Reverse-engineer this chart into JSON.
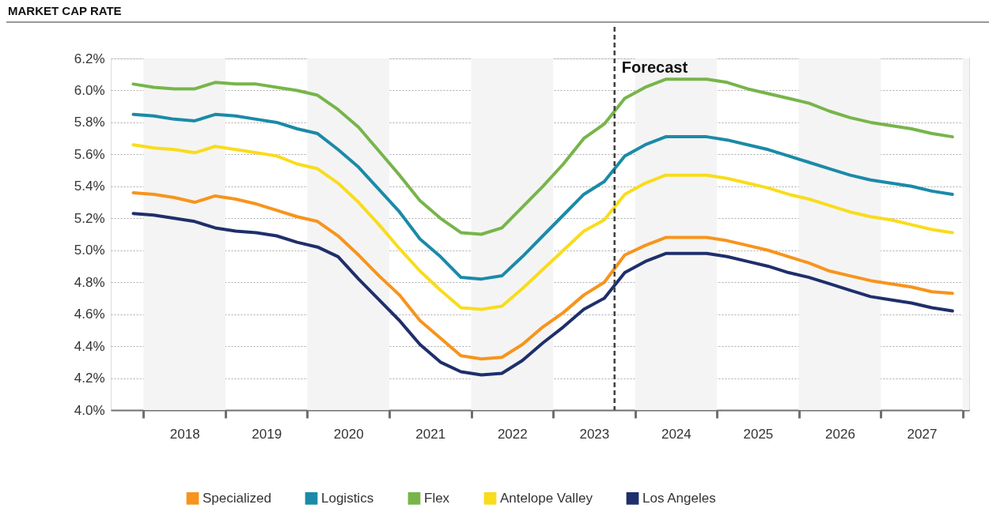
{
  "chart_data": {
    "type": "line",
    "title": "MARKET CAP RATE",
    "x": [
      2017.875,
      2018.125,
      2018.375,
      2018.625,
      2018.875,
      2019.125,
      2019.375,
      2019.625,
      2019.875,
      2020.125,
      2020.375,
      2020.625,
      2020.875,
      2021.125,
      2021.375,
      2021.625,
      2021.875,
      2022.125,
      2022.375,
      2022.625,
      2022.875,
      2023.125,
      2023.375,
      2023.625,
      2023.875,
      2024.125,
      2024.375,
      2024.625,
      2024.875,
      2025.125,
      2025.375,
      2025.625,
      2025.875,
      2026.125,
      2026.375,
      2026.625,
      2026.875,
      2027.125,
      2027.375,
      2027.625,
      2027.875
    ],
    "series": [
      {
        "name": "Specialized",
        "color": "#f7941d",
        "values": [
          5.36,
          5.35,
          5.33,
          5.3,
          5.34,
          5.32,
          5.29,
          5.25,
          5.21,
          5.18,
          5.09,
          4.97,
          4.84,
          4.72,
          4.56,
          4.45,
          4.34,
          4.32,
          4.33,
          4.41,
          4.52,
          4.61,
          4.72,
          4.8,
          4.97,
          5.03,
          5.08,
          5.08,
          5.08,
          5.06,
          5.03,
          5.0,
          4.96,
          4.92,
          4.87,
          4.84,
          4.81,
          4.79,
          4.77,
          4.74,
          4.73
        ]
      },
      {
        "name": "Logistics",
        "color": "#1b8aa8",
        "values": [
          5.85,
          5.84,
          5.82,
          5.81,
          5.85,
          5.84,
          5.82,
          5.8,
          5.76,
          5.73,
          5.63,
          5.52,
          5.38,
          5.24,
          5.07,
          4.96,
          4.83,
          4.82,
          4.84,
          4.96,
          5.09,
          5.22,
          5.35,
          5.43,
          5.59,
          5.66,
          5.71,
          5.71,
          5.71,
          5.69,
          5.66,
          5.63,
          5.59,
          5.55,
          5.51,
          5.47,
          5.44,
          5.42,
          5.4,
          5.37,
          5.35
        ]
      },
      {
        "name": "Flex",
        "color": "#77b54b",
        "values": [
          6.04,
          6.02,
          6.01,
          6.01,
          6.05,
          6.04,
          6.04,
          6.02,
          6.0,
          5.97,
          5.88,
          5.77,
          5.62,
          5.47,
          5.31,
          5.2,
          5.11,
          5.1,
          5.14,
          5.27,
          5.4,
          5.54,
          5.7,
          5.79,
          5.95,
          6.02,
          6.07,
          6.07,
          6.07,
          6.05,
          6.01,
          5.98,
          5.95,
          5.92,
          5.87,
          5.83,
          5.8,
          5.78,
          5.76,
          5.73,
          5.71
        ]
      },
      {
        "name": "Antelope Valley",
        "color": "#f9dc1c",
        "values": [
          5.66,
          5.64,
          5.63,
          5.61,
          5.65,
          5.63,
          5.61,
          5.59,
          5.54,
          5.51,
          5.42,
          5.3,
          5.16,
          5.01,
          4.87,
          4.75,
          4.64,
          4.63,
          4.65,
          4.76,
          4.88,
          5.0,
          5.12,
          5.19,
          5.35,
          5.42,
          5.47,
          5.47,
          5.47,
          5.45,
          5.42,
          5.39,
          5.35,
          5.32,
          5.28,
          5.24,
          5.21,
          5.19,
          5.16,
          5.13,
          5.11
        ]
      },
      {
        "name": "Los Angeles",
        "color": "#1f2f6b",
        "values": [
          5.23,
          5.22,
          5.2,
          5.18,
          5.14,
          5.12,
          5.11,
          5.09,
          5.05,
          5.02,
          4.96,
          4.82,
          4.69,
          4.56,
          4.41,
          4.3,
          4.24,
          4.22,
          4.23,
          4.31,
          4.42,
          4.52,
          4.63,
          4.7,
          4.86,
          4.93,
          4.98,
          4.98,
          4.98,
          4.96,
          4.93,
          4.9,
          4.86,
          4.83,
          4.79,
          4.75,
          4.71,
          4.69,
          4.67,
          4.64,
          4.62
        ]
      }
    ],
    "xlim": [
      2017.6,
      2028.08
    ],
    "xticks": [
      {
        "value": 2018,
        "label": null
      },
      {
        "value": 2018.5,
        "label": "2018"
      },
      {
        "value": 2019,
        "label": null
      },
      {
        "value": 2019.5,
        "label": "2019"
      },
      {
        "value": 2020,
        "label": null
      },
      {
        "value": 2020.5,
        "label": "2020"
      },
      {
        "value": 2021,
        "label": null
      },
      {
        "value": 2021.5,
        "label": "2021"
      },
      {
        "value": 2022,
        "label": null
      },
      {
        "value": 2022.5,
        "label": "2022"
      },
      {
        "value": 2023,
        "label": null
      },
      {
        "value": 2023.5,
        "label": "2023"
      },
      {
        "value": 2024,
        "label": null
      },
      {
        "value": 2024.5,
        "label": "2024"
      },
      {
        "value": 2025,
        "label": null
      },
      {
        "value": 2025.5,
        "label": "2025"
      },
      {
        "value": 2026,
        "label": null
      },
      {
        "value": 2026.5,
        "label": "2026"
      },
      {
        "value": 2027,
        "label": null
      },
      {
        "value": 2027.5,
        "label": "2027"
      },
      {
        "value": 2028,
        "label": null
      }
    ],
    "ylim": [
      4.0,
      6.2
    ],
    "yticks": [
      {
        "value": 4.0,
        "label": "4.0%"
      },
      {
        "value": 4.2,
        "label": "4.2%"
      },
      {
        "value": 4.4,
        "label": "4.4%"
      },
      {
        "value": 4.6,
        "label": "4.6%"
      },
      {
        "value": 4.8,
        "label": "4.8%"
      },
      {
        "value": 5.0,
        "label": "5.0%"
      },
      {
        "value": 5.2,
        "label": "5.2%"
      },
      {
        "value": 5.4,
        "label": "5.4%"
      },
      {
        "value": 5.6,
        "label": "5.6%"
      },
      {
        "value": 5.8,
        "label": "5.8%"
      },
      {
        "value": 6.0,
        "label": "6.0%"
      },
      {
        "value": 6.2,
        "label": "6.2%"
      }
    ],
    "ref_lines": [
      {
        "axis": "x",
        "value": 2023.75,
        "label": "Forecast",
        "color": "#404040",
        "line_style": "dashed"
      }
    ],
    "bands": [
      {
        "axis": "x",
        "from": 2018,
        "to": 2019,
        "color": "#f4f4f4"
      },
      {
        "axis": "x",
        "from": 2020,
        "to": 2021,
        "color": "#f4f4f4"
      },
      {
        "axis": "x",
        "from": 2022,
        "to": 2023,
        "color": "#f4f4f4"
      },
      {
        "axis": "x",
        "from": 2024,
        "to": 2025,
        "color": "#f4f4f4"
      },
      {
        "axis": "x",
        "from": 2026,
        "to": 2027,
        "color": "#f4f4f4"
      },
      {
        "axis": "x",
        "from": 2028,
        "to": 2028.08,
        "color": "#f4f4f4"
      }
    ],
    "grid": "y",
    "legend": "bottom",
    "marker": "none",
    "line_style": "solid"
  }
}
